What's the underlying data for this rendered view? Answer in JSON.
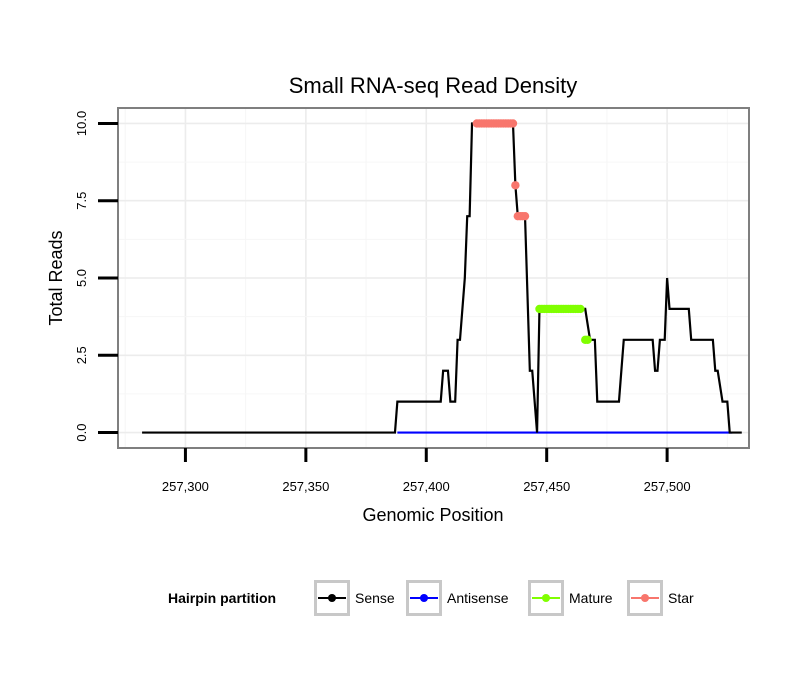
{
  "chart_data": {
    "type": "line",
    "title": "Small RNA-seq Read Density",
    "xlabel": "Genomic Position",
    "ylabel": "Total Reads",
    "xlim": [
      257272,
      257534
    ],
    "ylim": [
      -0.5,
      10.5
    ],
    "x_ticks": [
      257300,
      257350,
      257400,
      257450,
      257500
    ],
    "x_tick_labels": [
      "257,300",
      "257,350",
      "257,400",
      "257,450",
      "257,500"
    ],
    "y_ticks": [
      0,
      2.5,
      5,
      7.5,
      10
    ],
    "y_tick_labels": [
      "0.0",
      "2.5",
      "5.0",
      "7.5",
      "10.0"
    ],
    "grid": true,
    "legend": {
      "title": "Hairpin partition",
      "position": "bottom",
      "entries": [
        {
          "name": "Sense",
          "color": "#000000"
        },
        {
          "name": "Antisense",
          "color": "#0000ff"
        },
        {
          "name": "Mature",
          "color": "#80ff00"
        },
        {
          "name": "Star",
          "color": "#f8766d"
        }
      ]
    },
    "series": [
      {
        "name": "Sense",
        "color": "#000000",
        "kind": "line",
        "x": [
          257282,
          257387,
          257388,
          257406,
          257407,
          257409,
          257410,
          257412,
          257413,
          257414,
          257416,
          257417,
          257418,
          257419,
          257421,
          257422,
          257436,
          257437,
          257438,
          257439,
          257440,
          257441,
          257443,
          257444,
          257446,
          257447,
          257464,
          257466,
          257468,
          257469,
          257470,
          257471,
          257472,
          257480,
          257482,
          257493,
          257494,
          257495,
          257496,
          257497,
          257499,
          257500,
          257501,
          257502,
          257508,
          257509,
          257510,
          257518,
          257519,
          257520,
          257521,
          257523,
          257524,
          257525,
          257526,
          257531
        ],
        "y": [
          0,
          0,
          1,
          1,
          2,
          2,
          1,
          1,
          3,
          3,
          5,
          7,
          7,
          10,
          10,
          10,
          10,
          8,
          7,
          7,
          7,
          7,
          2,
          2,
          0,
          4,
          4,
          4,
          3,
          3,
          3,
          1,
          1,
          1,
          3,
          3,
          3,
          2,
          2,
          3,
          3,
          5,
          4,
          4,
          4,
          4,
          3,
          3,
          3,
          2,
          2,
          1,
          1,
          1,
          0,
          0
        ]
      },
      {
        "name": "Antisense",
        "color": "#0000ff",
        "kind": "line",
        "x": [
          257388,
          257527
        ],
        "y": [
          0,
          0
        ]
      },
      {
        "name": "Mature",
        "color": "#80ff00",
        "kind": "points",
        "x": [
          257447,
          257448,
          257449,
          257450,
          257451,
          257452,
          257453,
          257454,
          257455,
          257456,
          257457,
          257458,
          257459,
          257460,
          257461,
          257462,
          257463,
          257464,
          257466,
          257467
        ],
        "y": [
          4,
          4,
          4,
          4,
          4,
          4,
          4,
          4,
          4,
          4,
          4,
          4,
          4,
          4,
          4,
          4,
          4,
          4,
          3,
          3
        ]
      },
      {
        "name": "Star",
        "color": "#f8766d",
        "kind": "points",
        "x": [
          257421,
          257422,
          257423,
          257424,
          257425,
          257426,
          257427,
          257428,
          257429,
          257430,
          257431,
          257432,
          257433,
          257434,
          257435,
          257436,
          257437,
          257438,
          257439,
          257440,
          257441
        ],
        "y": [
          10,
          10,
          10,
          10,
          10,
          10,
          10,
          10,
          10,
          10,
          10,
          10,
          10,
          10,
          10,
          10,
          8,
          7,
          7,
          7,
          7
        ]
      }
    ]
  }
}
